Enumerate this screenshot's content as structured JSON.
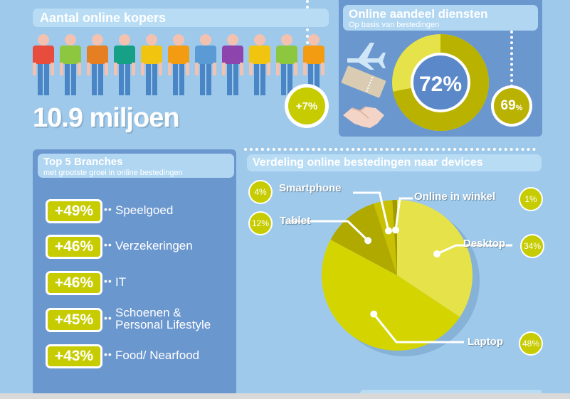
{
  "kopers": {
    "title": "Aantal online kopers",
    "count": "10.9 miljoen",
    "growth": "+7%",
    "people_colors": [
      "#e74c3c",
      "#8dc63f",
      "#e67e22",
      "#16a085",
      "#f1c40f",
      "#f39c12",
      "#5a9bd5",
      "#8e44ad",
      "#f1c40f",
      "#8dc63f",
      "#f39c12"
    ]
  },
  "diensten": {
    "title": "Online aandeel diensten",
    "subtitle": "Op basis van bestedingen",
    "value": "72%",
    "share": 72,
    "side_value": "69",
    "side_unit": "%",
    "icons": [
      "airplane-icon",
      "ticket-icon",
      "handshake-icon"
    ]
  },
  "branches": {
    "title": "Top 5 Branches",
    "subtitle": "met grootste groei in online bestedingen",
    "items": [
      {
        "value": "+49%",
        "label": "Speelgoed"
      },
      {
        "value": "+46%",
        "label": "Verzekeringen"
      },
      {
        "value": "+46%",
        "label": "IT"
      },
      {
        "value": "+45%",
        "label": "Schoenen & Personal Lifestyle"
      },
      {
        "value": "+43%",
        "label": "Food/ Nearfood"
      }
    ]
  },
  "chart_data": {
    "type": "pie",
    "title": "Verdeling online bestedingen naar devices",
    "categories": [
      "Desktop",
      "Laptop",
      "Tablet",
      "Smartphone",
      "Online in winkel"
    ],
    "values": [
      34,
      48,
      12,
      4,
      1
    ],
    "value_labels": [
      "34%",
      "48%",
      "12%",
      "4%",
      "1%"
    ],
    "colors": [
      "#e6e24a",
      "#d4d500",
      "#b0a900",
      "#c8c000",
      "#a29b00"
    ]
  },
  "colors": {
    "background": "#9ec9ea",
    "panel": "#6b97cf",
    "accent": "#c6cc00",
    "title_bar": "#b9dcf5"
  }
}
